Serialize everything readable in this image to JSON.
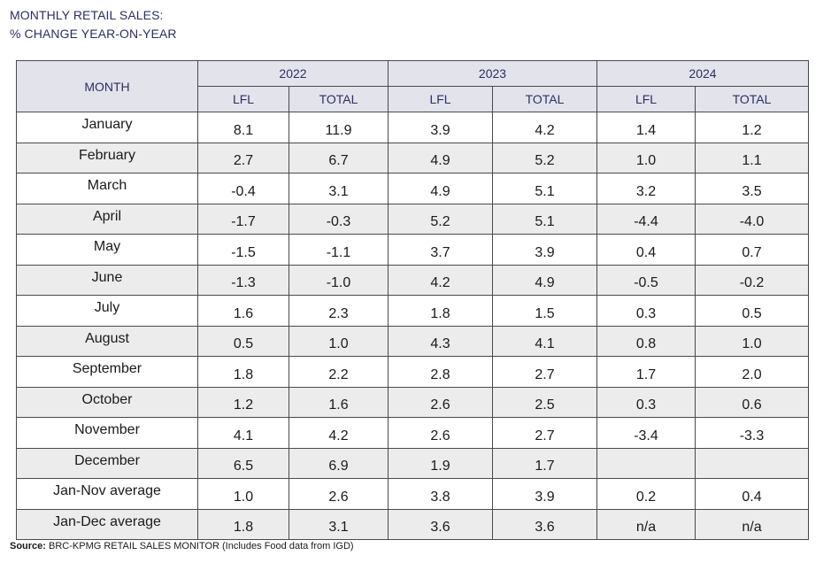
{
  "title": {
    "line1": "MONTHLY RETAIL SALES:",
    "line2": "% CHANGE YEAR-ON-YEAR"
  },
  "table": {
    "month_header": "MONTH",
    "years": [
      "2022",
      "2023",
      "2024"
    ],
    "sub_headers": [
      "LFL",
      "TOTAL",
      "LFL",
      "TOTAL",
      "LFL",
      "TOTAL"
    ],
    "rows": [
      {
        "month": "January",
        "values": [
          "8.1",
          "11.9",
          "3.9",
          "4.2",
          "1.4",
          "1.2"
        ]
      },
      {
        "month": "February",
        "values": [
          "2.7",
          "6.7",
          "4.9",
          "5.2",
          "1.0",
          "1.1"
        ]
      },
      {
        "month": "March",
        "values": [
          "-0.4",
          "3.1",
          "4.9",
          "5.1",
          "3.2",
          "3.5"
        ]
      },
      {
        "month": "April",
        "values": [
          "-1.7",
          "-0.3",
          "5.2",
          "5.1",
          "-4.4",
          "-4.0"
        ]
      },
      {
        "month": "May",
        "values": [
          "-1.5",
          "-1.1",
          "3.7",
          "3.9",
          "0.4",
          "0.7"
        ]
      },
      {
        "month": "June",
        "values": [
          "-1.3",
          "-1.0",
          "4.2",
          "4.9",
          "-0.5",
          "-0.2"
        ]
      },
      {
        "month": "July",
        "values": [
          "1.6",
          "2.3",
          "1.8",
          "1.5",
          "0.3",
          "0.5"
        ]
      },
      {
        "month": "August",
        "values": [
          "0.5",
          "1.0",
          "4.3",
          "4.1",
          "0.8",
          "1.0"
        ]
      },
      {
        "month": "September",
        "values": [
          "1.8",
          "2.2",
          "2.8",
          "2.7",
          "1.7",
          "2.0"
        ]
      },
      {
        "month": "October",
        "values": [
          "1.2",
          "1.6",
          "2.6",
          "2.5",
          "0.3",
          "0.6"
        ]
      },
      {
        "month": "November",
        "values": [
          "4.1",
          "4.2",
          "2.6",
          "2.7",
          "-3.4",
          "-3.3"
        ]
      },
      {
        "month": "December",
        "values": [
          "6.5",
          "6.9",
          "1.9",
          "1.7",
          "",
          ""
        ]
      },
      {
        "month": "Jan-Nov average",
        "values": [
          "1.0",
          "2.6",
          "3.8",
          "3.9",
          "0.2",
          "0.4"
        ]
      },
      {
        "month": "Jan-Dec average",
        "values": [
          "1.8",
          "3.1",
          "3.6",
          "3.6",
          "n/a",
          "n/a"
        ]
      }
    ]
  },
  "source": {
    "label": "Source:",
    "text": " BRC-KPMG RETAIL SALES MONITOR (Includes Food data from IGD)"
  }
}
